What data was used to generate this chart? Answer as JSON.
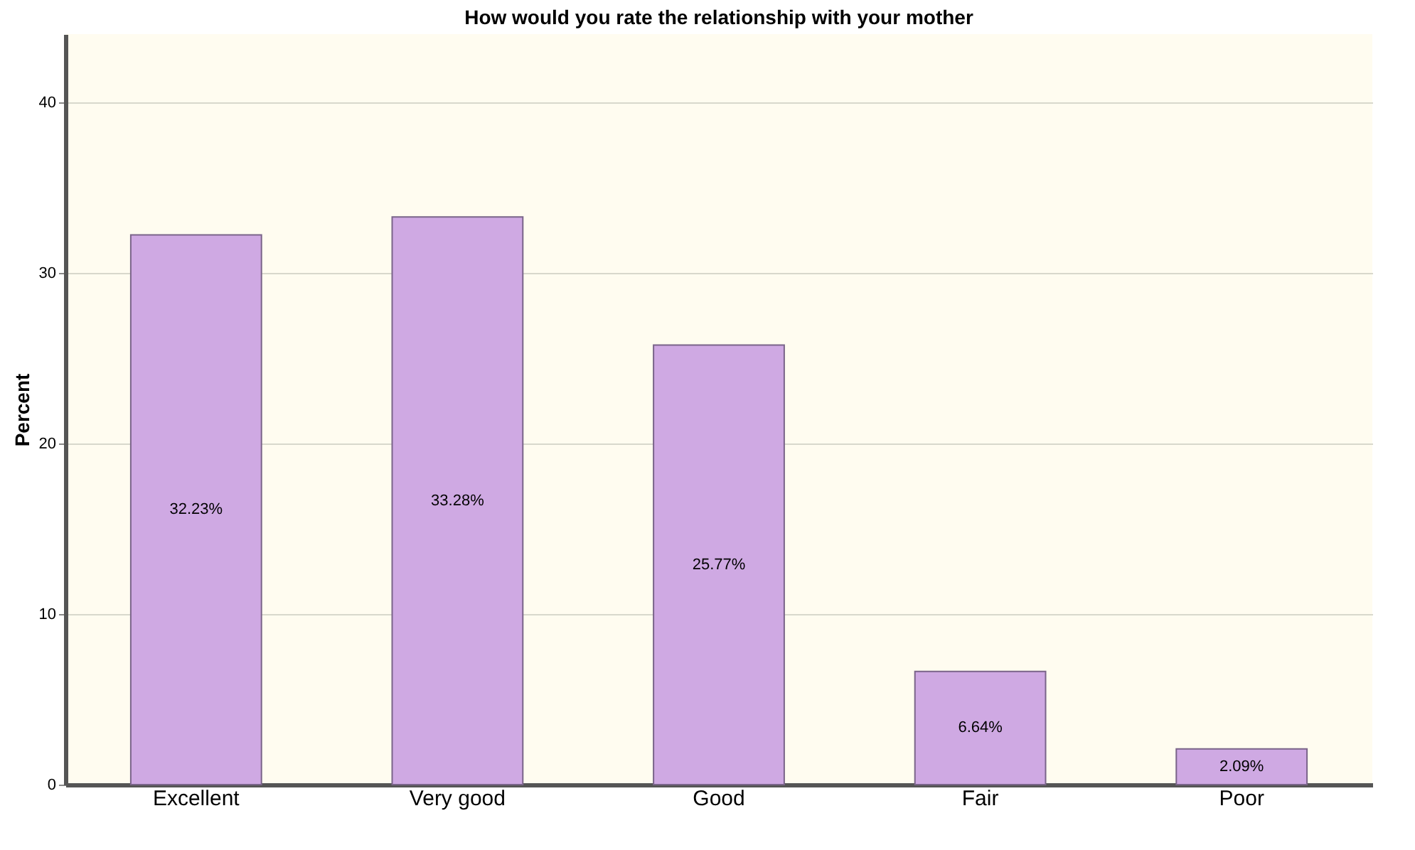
{
  "chart_data": {
    "type": "bar",
    "title": "How would you rate the relationship with your mother",
    "ylabel": "Percent",
    "categories": [
      "Excellent",
      "Very good",
      "Good",
      "Fair",
      "Poor"
    ],
    "values": [
      32.23,
      33.28,
      25.77,
      6.64,
      2.09
    ],
    "value_labels": [
      "32.23%",
      "33.28%",
      "25.77%",
      "6.64%",
      "2.09%"
    ],
    "color": "#cfa9e3",
    "ylim": [
      0,
      44
    ],
    "yticks": [
      0,
      10,
      20,
      30,
      40
    ],
    "grid": "y"
  }
}
